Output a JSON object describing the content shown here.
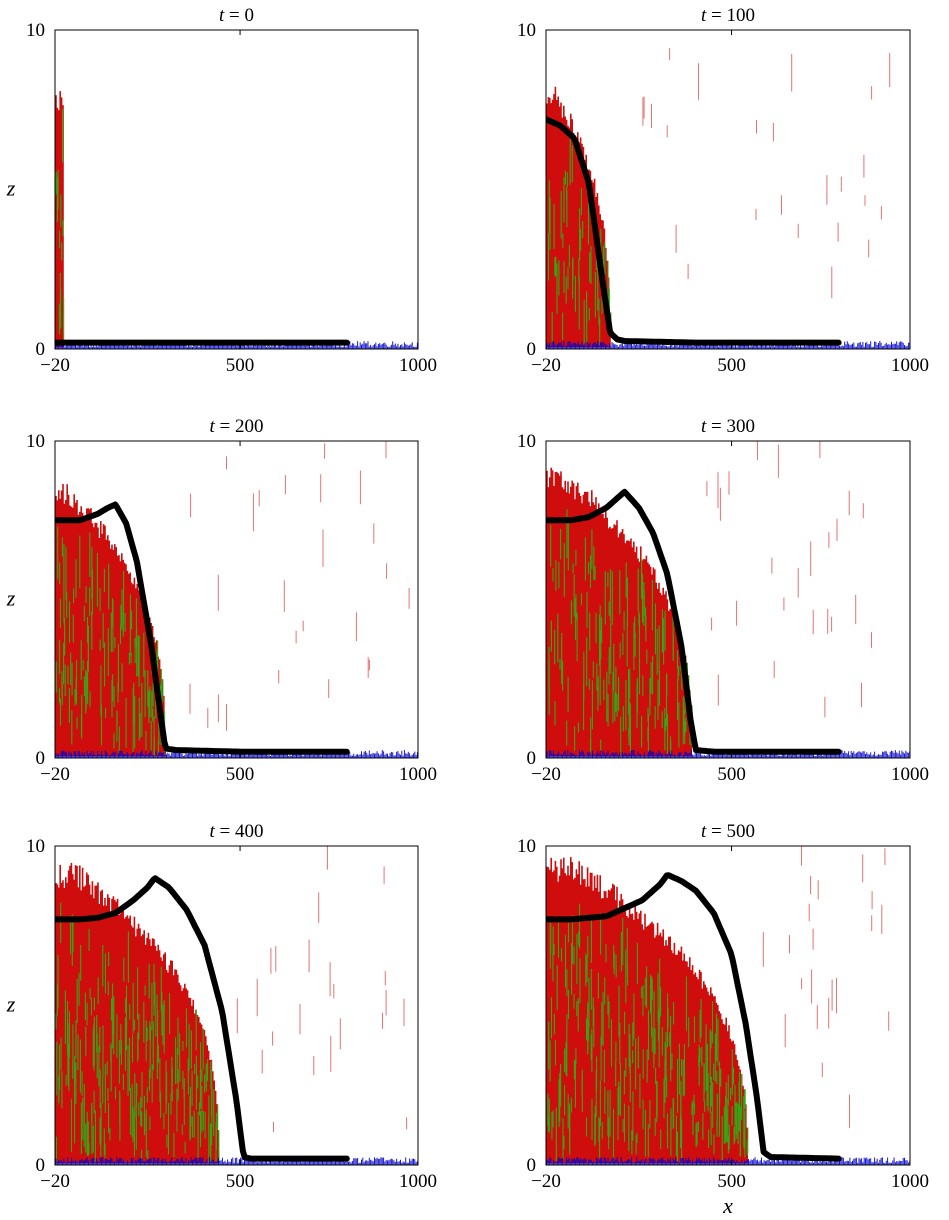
{
  "colors": {
    "front_line": "#000000",
    "species_red": "#cc0000",
    "species_green": "#16c316",
    "bed_blue": "#0000cc",
    "frame": "#000000",
    "background": "#ffffff"
  },
  "chart_data": [
    {
      "type": "line",
      "title_var": "t",
      "title_value": "0",
      "xlabel": "",
      "ylabel": "z",
      "xlim": [
        -20,
        1000
      ],
      "ylim": [
        0,
        10
      ],
      "xticks": [
        "−20",
        "500",
        "1000"
      ],
      "yticks": [
        "0",
        "10"
      ],
      "x": [
        -20,
        100,
        200,
        300,
        400,
        500,
        600,
        700,
        800
      ],
      "y": [
        0.2,
        0.2,
        0.2,
        0.2,
        0.2,
        0.2,
        0.2,
        0.2,
        0.2
      ],
      "cloud": {
        "front": 5,
        "peak": 8,
        "zmin": 0.05,
        "zmax": 8.0,
        "green_frac": 0.35
      },
      "stray_streaks": 0
    },
    {
      "type": "line",
      "title_var": "t",
      "title_value": "100",
      "xlabel": "",
      "ylabel": "",
      "xlim": [
        -20,
        1000
      ],
      "ylim": [
        0,
        10
      ],
      "xticks": [
        "−20",
        "500",
        "1000"
      ],
      "yticks": [
        "0",
        "10"
      ],
      "x": [
        -20,
        20,
        60,
        100,
        140,
        160,
        180,
        200,
        400,
        600,
        800
      ],
      "y": [
        7.2,
        7.0,
        6.6,
        5.2,
        2.0,
        0.5,
        0.3,
        0.25,
        0.2,
        0.2,
        0.2
      ],
      "cloud": {
        "front": 160,
        "peak": 20,
        "zmin": 0.05,
        "zmax": 8.2,
        "green_frac": 0.3
      },
      "stray_streaks": 24
    },
    {
      "type": "line",
      "title_var": "t",
      "title_value": "200",
      "xlabel": "",
      "ylabel": "z",
      "xlim": [
        -20,
        1000
      ],
      "ylim": [
        0,
        10
      ],
      "xticks": [
        "−20",
        "500",
        "1000"
      ],
      "yticks": [
        "0",
        "10"
      ],
      "x": [
        -20,
        50,
        100,
        130,
        150,
        180,
        210,
        250,
        275,
        290,
        320,
        500,
        800
      ],
      "y": [
        7.5,
        7.5,
        7.7,
        7.9,
        8.0,
        7.4,
        6.2,
        3.6,
        1.5,
        0.3,
        0.25,
        0.2,
        0.2
      ],
      "cloud": {
        "front": 290,
        "peak": 50,
        "zmin": 0.05,
        "zmax": 8.5,
        "green_frac": 0.38
      },
      "stray_streaks": 26
    },
    {
      "type": "line",
      "title_var": "t",
      "title_value": "300",
      "xlabel": "",
      "ylabel": "",
      "xlim": [
        -20,
        1000
      ],
      "ylim": [
        0,
        10
      ],
      "xticks": [
        "−20",
        "500",
        "1000"
      ],
      "yticks": [
        "0",
        "10"
      ],
      "x": [
        -20,
        50,
        100,
        150,
        180,
        200,
        240,
        280,
        320,
        360,
        385,
        400,
        450,
        800
      ],
      "y": [
        7.5,
        7.5,
        7.6,
        7.9,
        8.2,
        8.4,
        7.9,
        7.1,
        5.8,
        3.5,
        1.2,
        0.25,
        0.2,
        0.2
      ],
      "cloud": {
        "front": 390,
        "peak": 120,
        "zmin": 0.05,
        "zmax": 9.0,
        "green_frac": 0.35
      },
      "stray_streaks": 26
    },
    {
      "type": "line",
      "title_var": "t",
      "title_value": "400",
      "xlabel": "",
      "ylabel": "z",
      "xlim": [
        -20,
        1000
      ],
      "ylim": [
        0,
        10
      ],
      "xticks": [
        "−20",
        "500",
        "1000"
      ],
      "yticks": [
        "0",
        "10"
      ],
      "x": [
        -20,
        50,
        100,
        150,
        200,
        240,
        260,
        300,
        350,
        400,
        450,
        490,
        510,
        530,
        800
      ],
      "y": [
        7.7,
        7.7,
        7.75,
        7.9,
        8.3,
        8.7,
        9.0,
        8.7,
        8.0,
        6.9,
        4.8,
        2.0,
        0.25,
        0.2,
        0.2
      ],
      "cloud": {
        "front": 440,
        "peak": 200,
        "zmin": 0.05,
        "zmax": 9.3,
        "green_frac": 0.45
      },
      "stray_streaks": 22
    },
    {
      "type": "line",
      "title_var": "t",
      "title_value": "500",
      "xlabel": "x",
      "ylabel": "",
      "xlim": [
        -20,
        1000
      ],
      "ylim": [
        0,
        10
      ],
      "xticks": [
        "−20",
        "500",
        "1000"
      ],
      "yticks": [
        "0",
        "10"
      ],
      "x": [
        -20,
        50,
        150,
        250,
        300,
        320,
        360,
        400,
        450,
        500,
        540,
        570,
        590,
        610,
        800
      ],
      "y": [
        7.7,
        7.7,
        7.8,
        8.3,
        8.8,
        9.1,
        8.9,
        8.6,
        7.9,
        6.6,
        4.4,
        2.2,
        0.4,
        0.25,
        0.2
      ],
      "cloud": {
        "front": 545,
        "peak": 260,
        "zmin": 0.05,
        "zmax": 9.5,
        "green_frac": 0.42
      },
      "stray_streaks": 22
    }
  ]
}
